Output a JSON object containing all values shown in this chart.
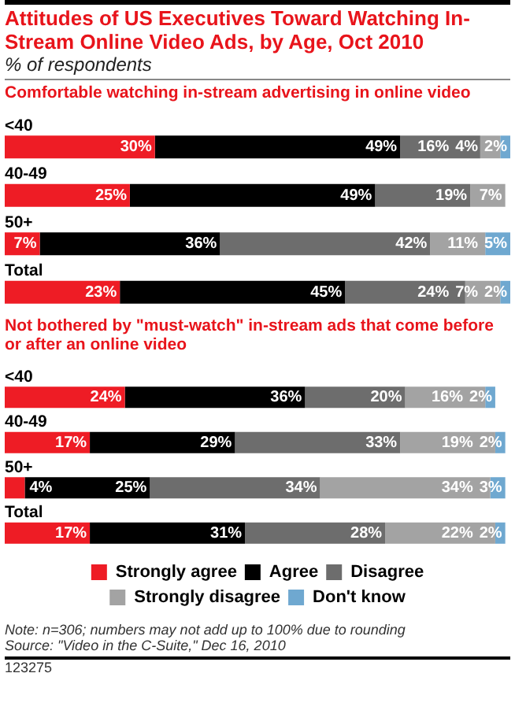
{
  "chart_data": [
    {
      "type": "bar",
      "orientation": "horizontal",
      "stacked": true,
      "title": "Attitudes of US Executives Toward Watching In-Stream Online Video Ads, by Age, Oct 2010",
      "subtitle": "% of respondents",
      "annotations": [
        "Comfortable watching in-stream advertising in online video"
      ],
      "categories": [
        "<40",
        "40-49",
        "50+",
        "Total"
      ],
      "xlim": [
        0,
        101
      ],
      "tick_labels": false,
      "legend": false,
      "series": [
        {
          "color": "#ee1c25",
          "values": [
            30,
            25,
            7,
            23
          ],
          "value_labels": [
            "30%",
            "25%",
            "7%",
            "23%"
          ]
        },
        {
          "color": "#000000",
          "values": [
            49,
            49,
            36,
            45
          ],
          "value_labels": [
            "49%",
            "49%",
            "36%",
            "45%"
          ]
        },
        {
          "color": "#6d6d6d",
          "values": [
            16,
            19,
            42,
            24
          ],
          "value_labels": [
            "16%",
            "19%",
            "42%",
            "24%"
          ]
        },
        {
          "color": "#a3a3a3",
          "values": [
            4,
            7,
            11,
            7
          ],
          "value_labels": [
            "4%",
            "7%",
            "11%",
            "7%"
          ]
        },
        {
          "color": "#6fa8d0",
          "values": [
            2,
            null,
            5,
            2
          ],
          "value_labels": [
            "2%",
            null,
            "5%",
            "2%"
          ]
        }
      ]
    },
    {
      "type": "bar",
      "orientation": "horizontal",
      "stacked": true,
      "title": "Not bothered by \"must-watch\" in-stream ads that come before or after an online video",
      "annotations": [
        "Note: n=306; numbers may not add up to 100% due to rounding",
        "Source: \"Video in the C-Suite,\" Dec 16, 2010",
        "123275"
      ],
      "categories": [
        "<40",
        "40-49",
        "50+",
        "Total"
      ],
      "xlim": [
        0,
        101
      ],
      "tick_labels": false,
      "legend": "bottom",
      "series": [
        {
          "name": "Strongly agree",
          "color": "#ee1c25",
          "values": [
            24,
            17,
            4,
            17
          ],
          "value_labels": [
            "24%",
            "17%",
            "4%",
            "17%"
          ]
        },
        {
          "name": "Agree",
          "color": "#000000",
          "values": [
            36,
            29,
            25,
            31
          ],
          "value_labels": [
            "36%",
            "29%",
            "25%",
            "31%"
          ]
        },
        {
          "name": "Disagree",
          "color": "#6d6d6d",
          "values": [
            20,
            33,
            34,
            28
          ],
          "value_labels": [
            "20%",
            "33%",
            "34%",
            "28%"
          ]
        },
        {
          "name": "Strongly disagree",
          "color": "#a3a3a3",
          "values": [
            16,
            19,
            34,
            22
          ],
          "value_labels": [
            "16%",
            "19%",
            "34%",
            "22%"
          ]
        },
        {
          "name": "Don't know",
          "color": "#6fa8d0",
          "values": [
            2,
            2,
            3,
            2
          ],
          "value_labels": [
            "2%",
            "2%",
            "3%",
            "2%"
          ]
        }
      ]
    }
  ]
}
